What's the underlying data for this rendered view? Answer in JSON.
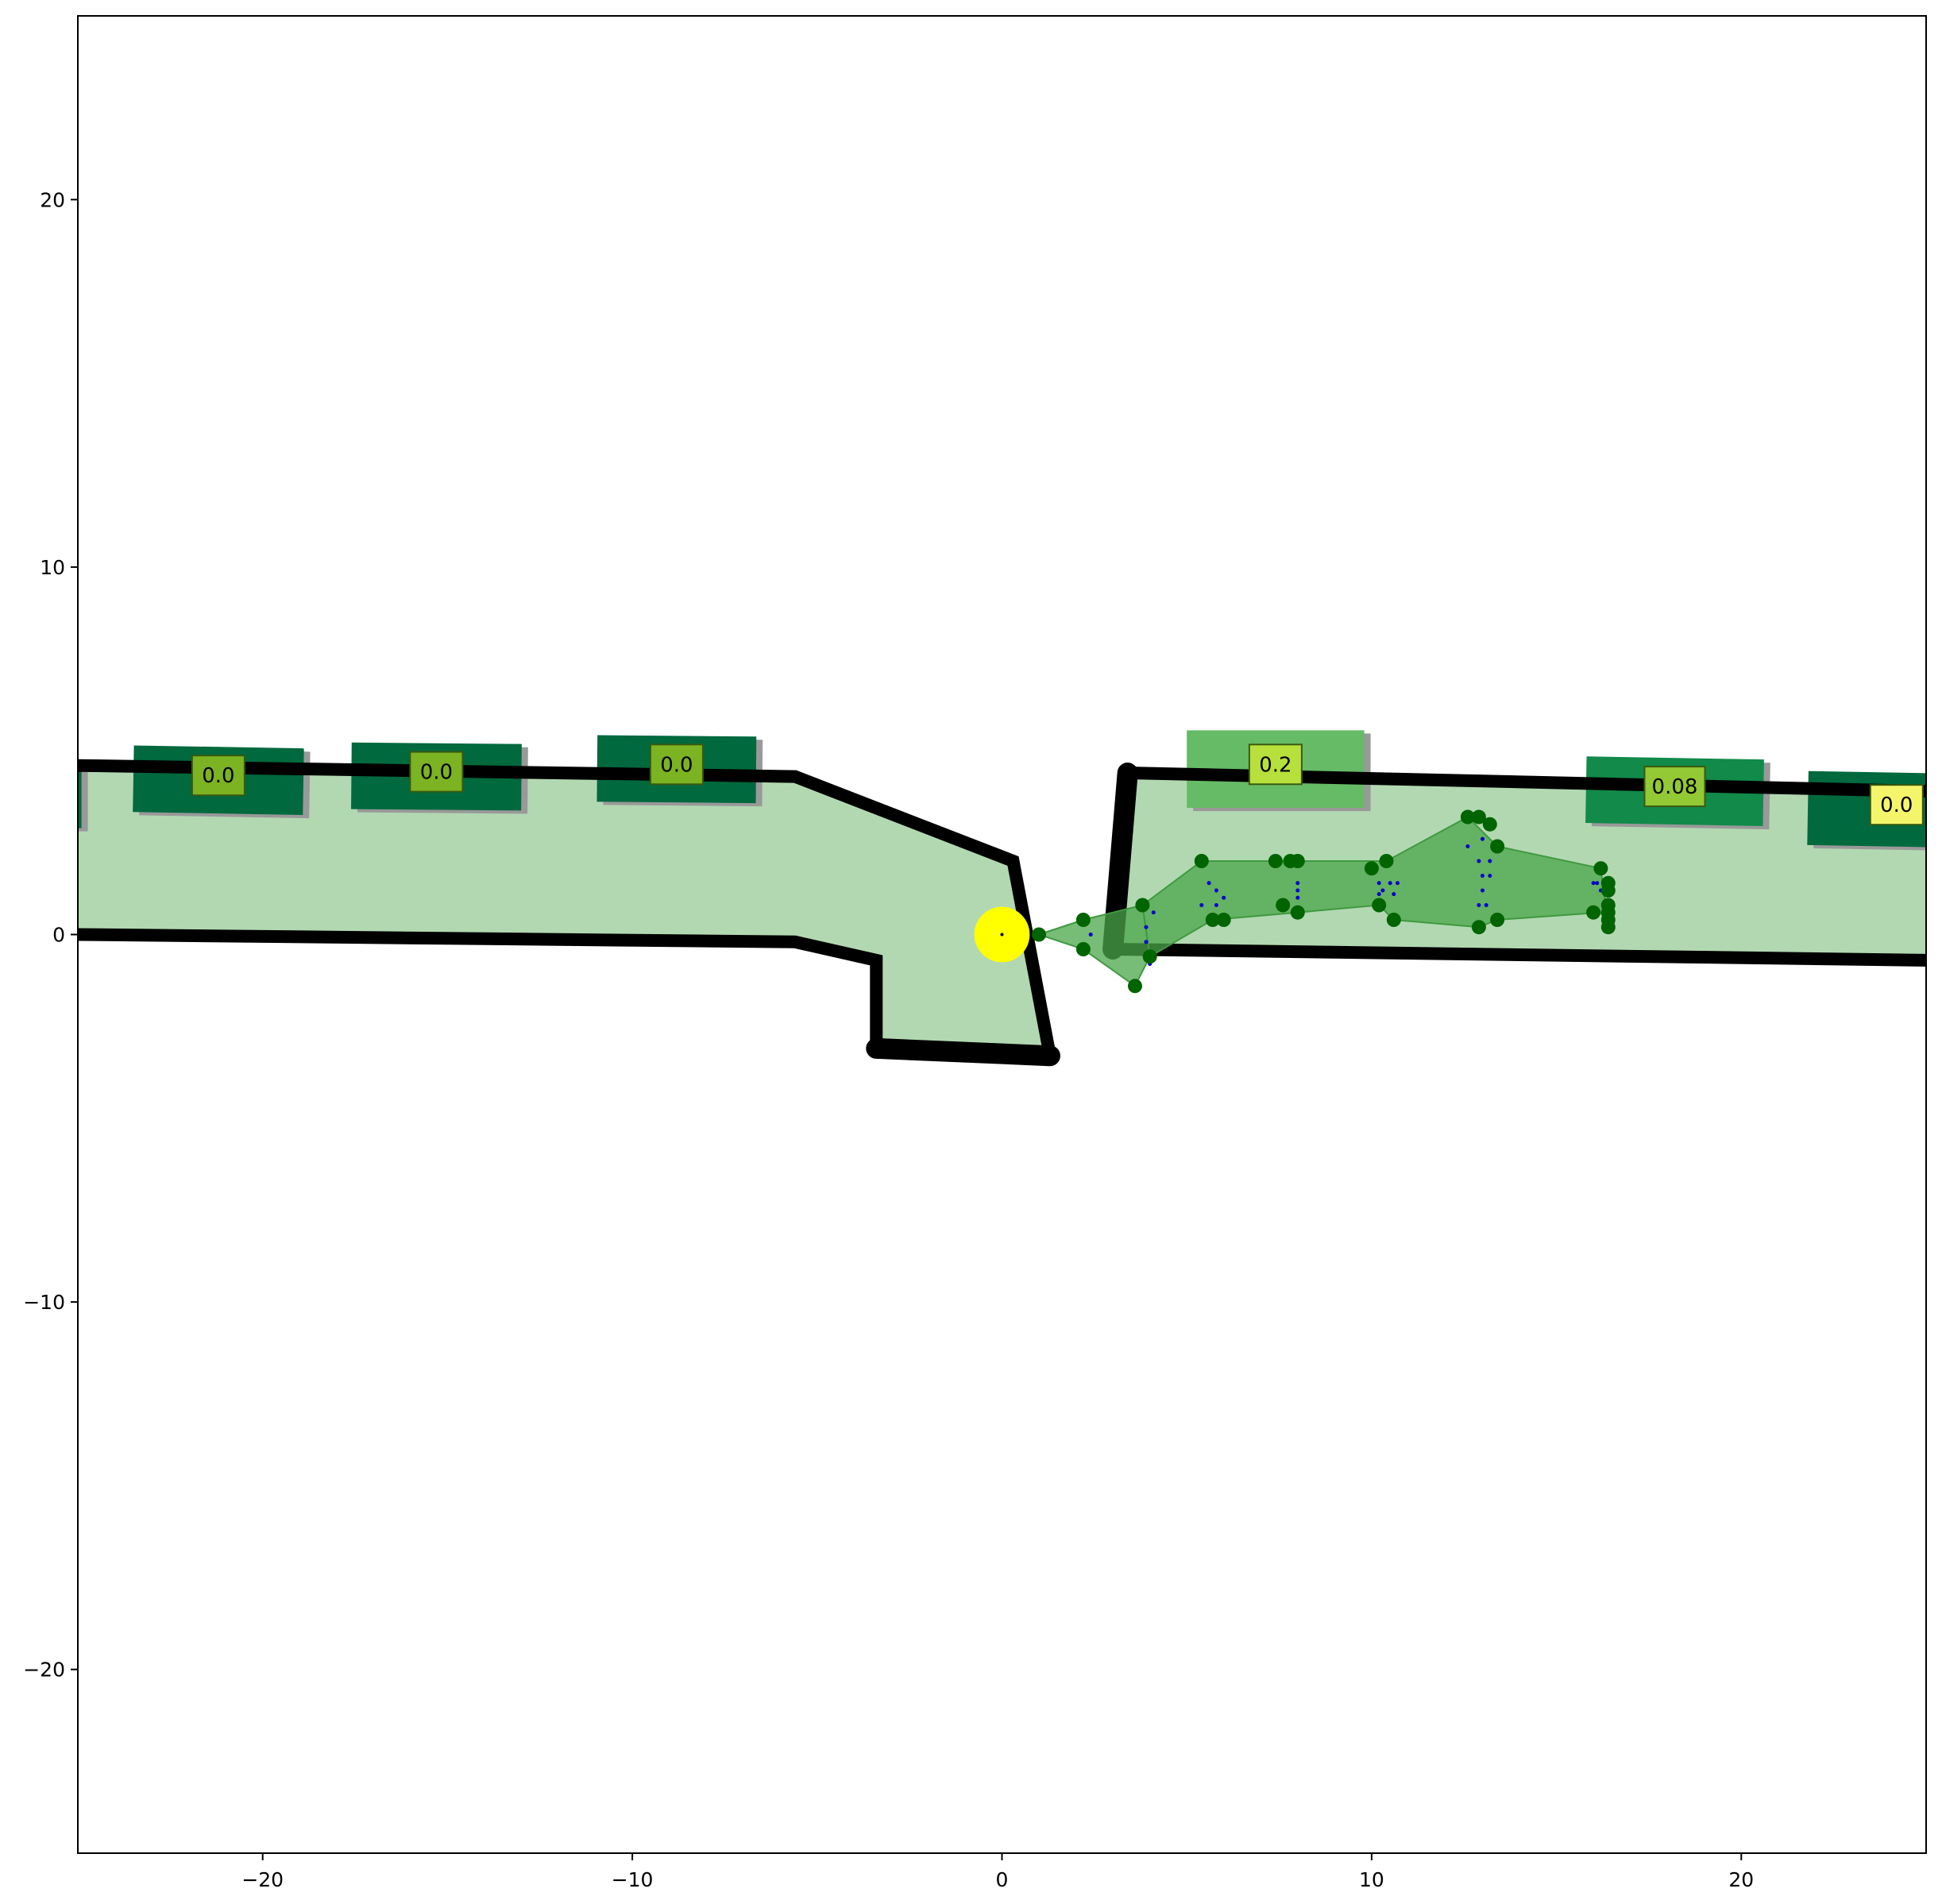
{
  "chart_data": {
    "type": "scatter",
    "title": "",
    "xlabel": "",
    "ylabel": "",
    "xlim": [
      -25,
      25
    ],
    "ylim": [
      -25,
      25
    ],
    "xticks": [
      -20,
      -10,
      0,
      10,
      20
    ],
    "yticks": [
      -20,
      -10,
      0,
      10,
      20
    ],
    "grid": false,
    "colors": {
      "region_fill": "#b2d8b2",
      "boundary": "#000000",
      "sensor": "#ffff00",
      "hull_fill": "#4aa64a",
      "point": "#006400",
      "trajectory_dots": "#0000cd",
      "shadow": "#999999"
    },
    "drivable_left": [
      [
        -25,
        4.6
      ],
      [
        -5.6,
        4.3
      ],
      [
        0.3,
        2.0
      ],
      [
        1.3,
        -3.3
      ],
      [
        -3.4,
        -3.1
      ],
      [
        -3.4,
        -0.7
      ],
      [
        -5.6,
        -0.2
      ],
      [
        -25,
        0.0
      ]
    ],
    "drivable_right": [
      [
        3.4,
        4.4
      ],
      [
        25,
        3.9
      ],
      [
        25,
        -0.7
      ],
      [
        3.0,
        -0.4
      ]
    ],
    "boundary_lines": [
      {
        "points": [
          [
            -25,
            4.6
          ],
          [
            -5.6,
            4.3
          ],
          [
            0.3,
            2.0
          ],
          [
            1.3,
            -3.3
          ]
        ],
        "heavy": false
      },
      {
        "points": [
          [
            -25,
            0.0
          ],
          [
            -5.6,
            -0.2
          ],
          [
            -3.4,
            -0.7
          ],
          [
            -3.4,
            -3.1
          ]
        ],
        "heavy": false
      },
      {
        "points": [
          [
            -3.4,
            -3.1
          ],
          [
            1.3,
            -3.3
          ]
        ],
        "heavy": true
      },
      {
        "points": [
          [
            3.4,
            4.4
          ],
          [
            25,
            3.9
          ]
        ],
        "heavy": false
      },
      {
        "points": [
          [
            3.0,
            -0.4
          ],
          [
            25,
            -0.7
          ]
        ],
        "heavy": false
      },
      {
        "points": [
          [
            3.4,
            4.4
          ],
          [
            3.0,
            -0.4
          ]
        ],
        "heavy": true
      }
    ],
    "ego": {
      "x": 0.0,
      "y": 0.0,
      "radius": 0.75
    },
    "vehicles": [
      {
        "x": -25.3,
        "y": 3.8,
        "w": 0.8,
        "h": 1.8,
        "angle": 0,
        "score": "",
        "fill": "#00693e"
      },
      {
        "x": -21.2,
        "y": 4.2,
        "w": 4.6,
        "h": 1.8,
        "angle": -1,
        "score": "0.0",
        "fill": "#00693e"
      },
      {
        "x": -15.3,
        "y": 4.3,
        "w": 4.6,
        "h": 1.8,
        "angle": -0.5,
        "score": "0.0",
        "fill": "#00693e"
      },
      {
        "x": -8.8,
        "y": 4.5,
        "w": 4.3,
        "h": 1.8,
        "angle": -0.5,
        "score": "0.0",
        "fill": "#00693e"
      },
      {
        "x": 7.4,
        "y": 4.5,
        "w": 4.8,
        "h": 2.1,
        "angle": 0,
        "score": "0.2",
        "fill": "#66bb66"
      },
      {
        "x": 18.2,
        "y": 3.9,
        "w": 4.8,
        "h": 1.8,
        "angle": -1,
        "score": "0.08",
        "fill": "#118a4a"
      },
      {
        "x": 24.2,
        "y": 3.4,
        "w": 4.8,
        "h": 2.0,
        "angle": -1,
        "score": "0.0",
        "fill": "#00693e"
      }
    ],
    "score_box_colors": {
      "0.0": "#7cb322",
      "0.2": "#b8e03c",
      "0.08": "#93c934",
      "edge": "#f5f56b"
    },
    "hull_polygons": [
      [
        [
          1.0,
          0.0
        ],
        [
          2.2,
          0.4
        ],
        [
          3.8,
          0.8
        ],
        [
          4.0,
          -0.6
        ],
        [
          3.6,
          -1.4
        ],
        [
          2.2,
          -0.4
        ]
      ],
      [
        [
          3.8,
          0.8
        ],
        [
          5.4,
          2.0
        ],
        [
          7.8,
          2.0
        ],
        [
          10.4,
          2.0
        ],
        [
          12.6,
          3.2
        ],
        [
          13.4,
          2.4
        ],
        [
          16.2,
          1.8
        ],
        [
          16.4,
          0.2
        ],
        [
          16.2,
          0.6
        ],
        [
          13.4,
          0.4
        ],
        [
          12.9,
          0.2
        ],
        [
          10.6,
          0.4
        ],
        [
          10.2,
          0.8
        ],
        [
          8.0,
          0.6
        ],
        [
          5.7,
          0.4
        ],
        [
          4.0,
          -0.6
        ]
      ]
    ],
    "points": [
      [
        1.0,
        0.0
      ],
      [
        2.2,
        0.4
      ],
      [
        2.2,
        -0.4
      ],
      [
        3.8,
        0.8
      ],
      [
        4.0,
        -0.6
      ],
      [
        3.6,
        -1.4
      ],
      [
        5.4,
        2.0
      ],
      [
        5.7,
        0.4
      ],
      [
        6.0,
        0.4
      ],
      [
        7.4,
        2.0
      ],
      [
        7.8,
        2.0
      ],
      [
        8.0,
        2.0
      ],
      [
        7.6,
        0.8
      ],
      [
        8.0,
        0.6
      ],
      [
        10.0,
        1.8
      ],
      [
        10.4,
        2.0
      ],
      [
        10.2,
        0.8
      ],
      [
        10.6,
        0.4
      ],
      [
        12.6,
        3.2
      ],
      [
        12.9,
        3.2
      ],
      [
        13.2,
        3.0
      ],
      [
        13.4,
        2.4
      ],
      [
        12.9,
        0.2
      ],
      [
        13.4,
        0.4
      ],
      [
        16.2,
        1.8
      ],
      [
        16.4,
        1.4
      ],
      [
        16.4,
        1.2
      ],
      [
        16.4,
        0.8
      ],
      [
        16.4,
        0.6
      ],
      [
        16.4,
        0.4
      ],
      [
        16.4,
        0.2
      ],
      [
        16.0,
        0.6
      ]
    ],
    "trajectory_dots": [
      [
        2.4,
        0.0
      ],
      [
        3.9,
        -0.2
      ],
      [
        4.0,
        -0.8
      ],
      [
        4.1,
        0.6
      ],
      [
        3.9,
        0.2
      ],
      [
        5.6,
        1.4
      ],
      [
        5.8,
        1.2
      ],
      [
        5.4,
        0.8
      ],
      [
        5.8,
        0.8
      ],
      [
        6.0,
        1.0
      ],
      [
        8.0,
        1.4
      ],
      [
        8.0,
        1.2
      ],
      [
        8.0,
        1.0
      ],
      [
        10.2,
        1.4
      ],
      [
        10.3,
        1.2
      ],
      [
        10.5,
        1.4
      ],
      [
        10.7,
        1.4
      ],
      [
        10.2,
        1.1
      ],
      [
        10.6,
        1.1
      ],
      [
        12.6,
        2.4
      ],
      [
        13.0,
        2.6
      ],
      [
        12.9,
        2.0
      ],
      [
        13.2,
        2.0
      ],
      [
        13.0,
        1.6
      ],
      [
        13.2,
        1.6
      ],
      [
        12.9,
        0.8
      ],
      [
        13.1,
        0.8
      ],
      [
        13.0,
        1.2
      ],
      [
        16.0,
        1.4
      ],
      [
        16.2,
        1.2
      ],
      [
        16.1,
        1.4
      ]
    ]
  }
}
